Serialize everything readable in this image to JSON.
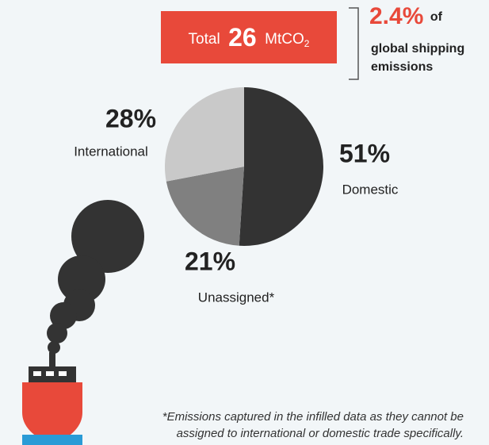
{
  "chart_data": {
    "type": "pie",
    "categories": [
      "Domestic",
      "Unassigned*",
      "International"
    ],
    "values": [
      51,
      21,
      28
    ],
    "value_labels": [
      "51%",
      "21%",
      "28%"
    ],
    "colors": [
      "#333333",
      "#808080",
      "#c9c9c9"
    ],
    "total": {
      "label": "Total",
      "value": 26,
      "unit": "MtCO",
      "unit_subscript": "2"
    },
    "share": {
      "value": 2.4,
      "label": "2.4%",
      "text": [
        "of",
        "global shipping",
        "emissions"
      ]
    },
    "note": [
      "*Emissions captured in the infilled data as they cannot be",
      "assigned to international or domestic trade specifically."
    ]
  }
}
